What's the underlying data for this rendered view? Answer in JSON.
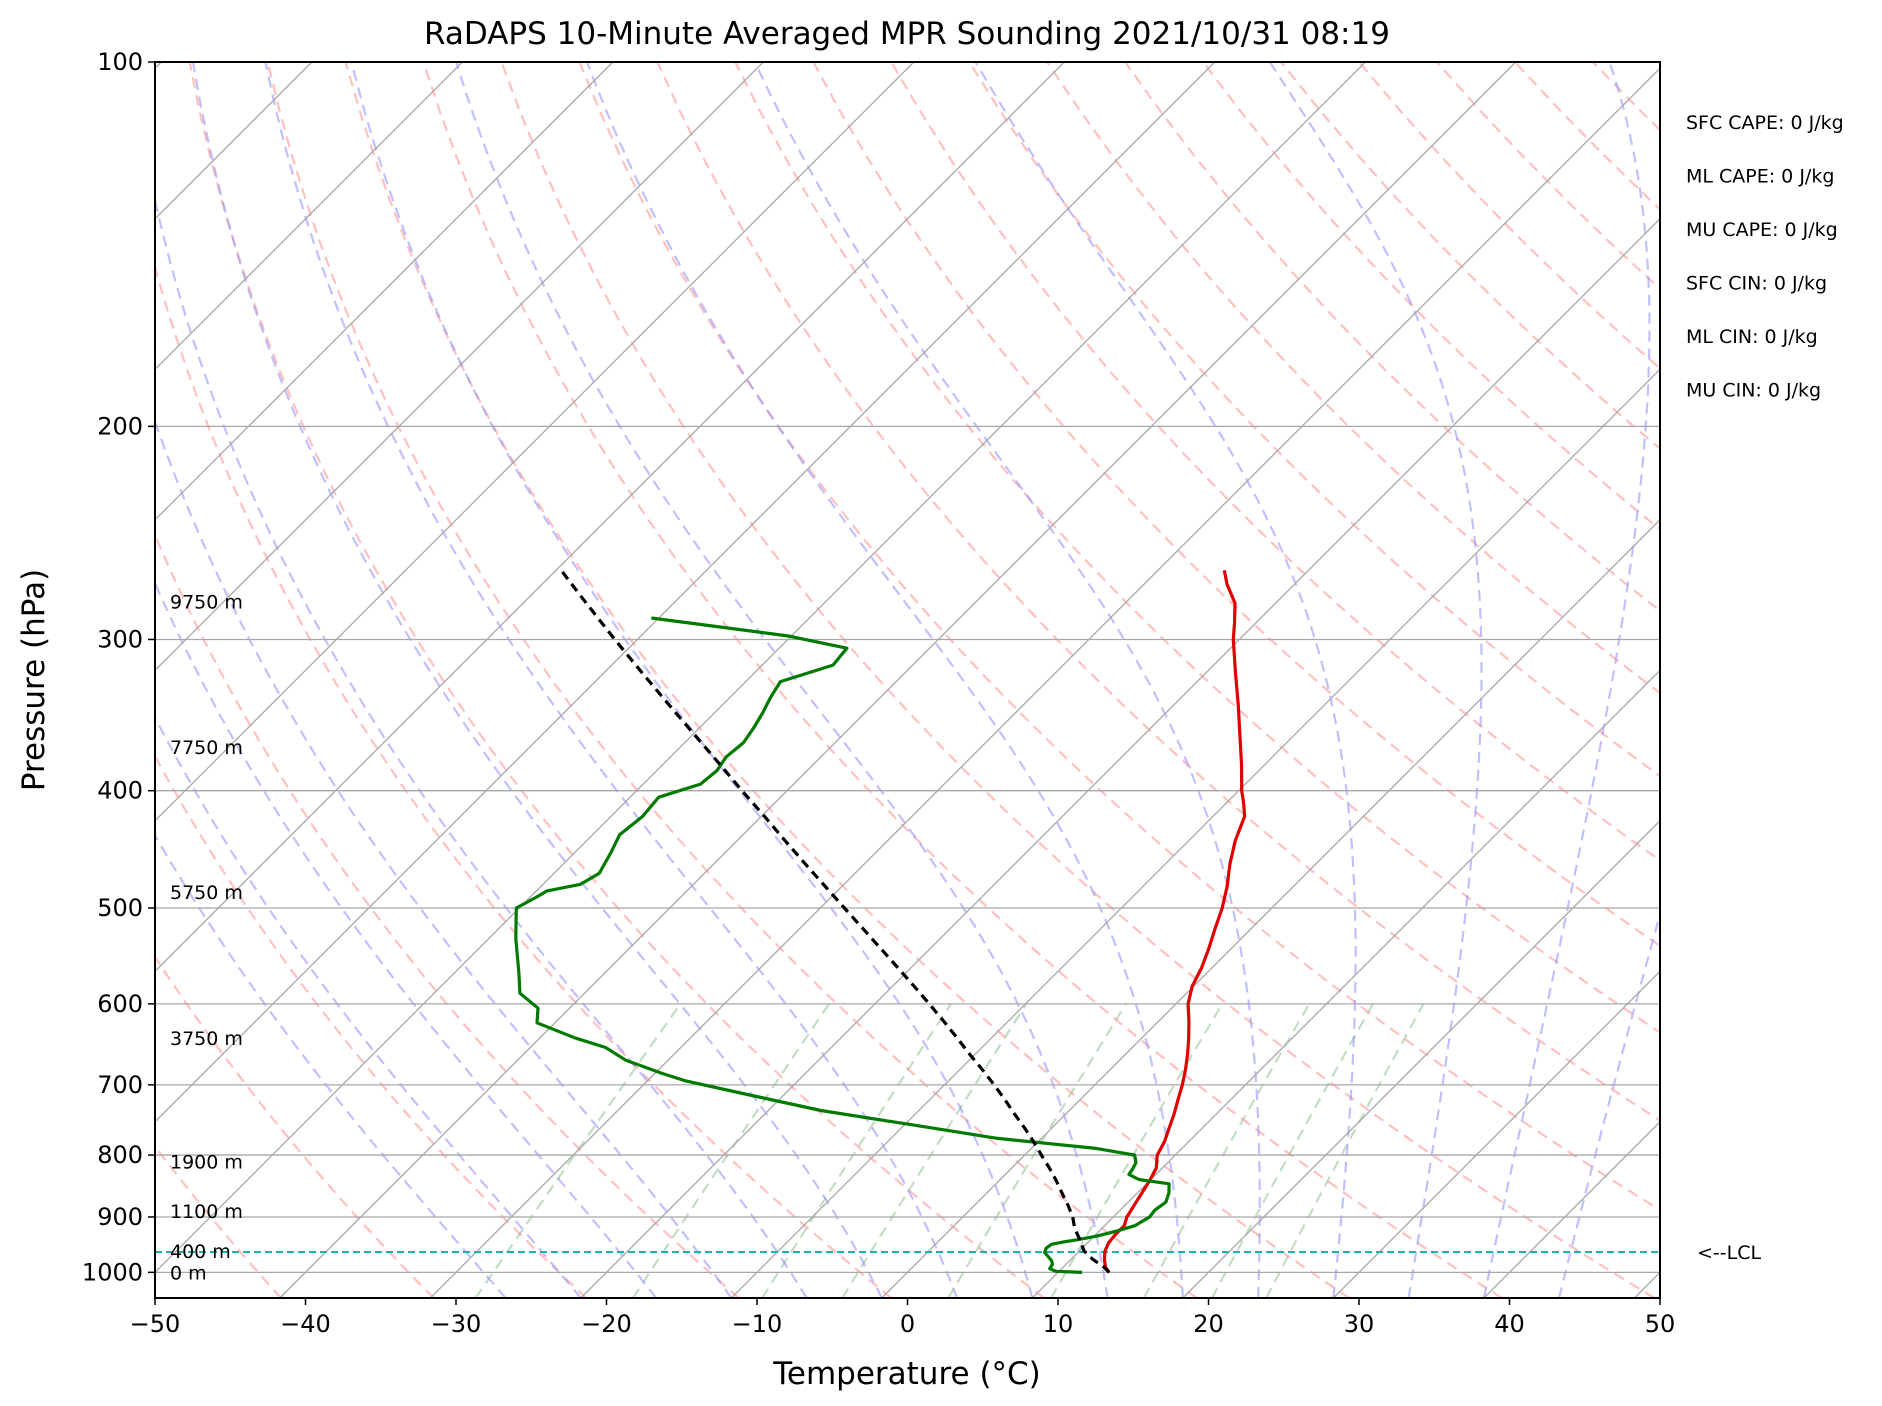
{
  "chart_data": {
    "type": "line",
    "title": "RaDAPS 10-Minute Averaged MPR Sounding 2021/10/31 08:19",
    "xlabel": "Temperature (°C)",
    "ylabel": "Pressure (hPa)",
    "xlim": [
      -50,
      50
    ],
    "ylim": [
      1050,
      100
    ],
    "y_scale": "log",
    "skew": "skew-T log-p",
    "grid": true,
    "x_ticks": [
      "−50",
      "−40",
      "−30",
      "−20",
      "−10",
      "0",
      "10",
      "20",
      "30",
      "40",
      "50"
    ],
    "x_tick_values": [
      -50,
      -40,
      -30,
      -20,
      -10,
      0,
      10,
      20,
      30,
      40,
      50
    ],
    "y_ticks": [
      "100",
      "200",
      "300",
      "400",
      "500",
      "600",
      "700",
      "800",
      "900",
      "1000"
    ],
    "y_tick_values": [
      100,
      200,
      300,
      400,
      500,
      600,
      700,
      800,
      900,
      1000
    ],
    "series": [
      {
        "role": "temperature",
        "color": "#e00000",
        "points": [
          [
            1000,
            13.4
          ],
          [
            990,
            12.8
          ],
          [
            975,
            12.2
          ],
          [
            960,
            11.7
          ],
          [
            945,
            11.4
          ],
          [
            930,
            11.3
          ],
          [
            915,
            11.3
          ],
          [
            900,
            10.9
          ],
          [
            880,
            10.6
          ],
          [
            860,
            10.3
          ],
          [
            840,
            10.0
          ],
          [
            820,
            9.6
          ],
          [
            800,
            8.8
          ],
          [
            780,
            8.4
          ],
          [
            760,
            7.8
          ],
          [
            740,
            7.2
          ],
          [
            720,
            6.5
          ],
          [
            700,
            5.8
          ],
          [
            680,
            5.0
          ],
          [
            660,
            4.1
          ],
          [
            640,
            3.1
          ],
          [
            620,
            2.0
          ],
          [
            600,
            0.8
          ],
          [
            580,
            -0.1
          ],
          [
            560,
            -0.7
          ],
          [
            540,
            -1.5
          ],
          [
            520,
            -2.4
          ],
          [
            500,
            -3.3
          ],
          [
            480,
            -4.4
          ],
          [
            460,
            -5.7
          ],
          [
            440,
            -6.9
          ],
          [
            420,
            -7.9
          ],
          [
            410,
            -8.8
          ],
          [
            400,
            -9.8
          ],
          [
            380,
            -11.6
          ],
          [
            360,
            -13.6
          ],
          [
            340,
            -15.7
          ],
          [
            320,
            -18.0
          ],
          [
            300,
            -20.4
          ],
          [
            290,
            -21.5
          ],
          [
            280,
            -22.7
          ],
          [
            270,
            -24.5
          ],
          [
            263,
            -25.6
          ]
        ]
      },
      {
        "role": "dewpoint",
        "color": "#007a00",
        "points": [
          [
            1000,
            11.6
          ],
          [
            998,
            9.8
          ],
          [
            993,
            9.2
          ],
          [
            985,
            9.1
          ],
          [
            978,
            8.8
          ],
          [
            972,
            8.4
          ],
          [
            963,
            7.8
          ],
          [
            955,
            7.6
          ],
          [
            948,
            7.7
          ],
          [
            944,
            8.3
          ],
          [
            940,
            9.1
          ],
          [
            933,
            10.2
          ],
          [
            924,
            11.2
          ],
          [
            915,
            12.0
          ],
          [
            900,
            12.4
          ],
          [
            888,
            12.3
          ],
          [
            875,
            12.5
          ],
          [
            860,
            12.1
          ],
          [
            845,
            11.5
          ],
          [
            838,
            9.2
          ],
          [
            830,
            8.2
          ],
          [
            822,
            8.1
          ],
          [
            812,
            7.9
          ],
          [
            800,
            7.3
          ],
          [
            790,
            4.3
          ],
          [
            775,
            -2.9
          ],
          [
            755,
            -9.6
          ],
          [
            735,
            -16.5
          ],
          [
            715,
            -21.9
          ],
          [
            695,
            -27.4
          ],
          [
            685,
            -29.5
          ],
          [
            668,
            -32.8
          ],
          [
            652,
            -35.0
          ],
          [
            640,
            -37.7
          ],
          [
            622,
            -41.2
          ],
          [
            605,
            -42.1
          ],
          [
            588,
            -44.3
          ],
          [
            566,
            -45.7
          ],
          [
            530,
            -48.2
          ],
          [
            500,
            -50.2
          ],
          [
            490,
            -49.6
          ],
          [
            484,
            -49.3
          ],
          [
            478,
            -47.5
          ],
          [
            468,
            -47.0
          ],
          [
            450,
            -47.6
          ],
          [
            435,
            -48.2
          ],
          [
            420,
            -47.9
          ],
          [
            405,
            -48.1
          ],
          [
            395,
            -46.2
          ],
          [
            385,
            -46.0
          ],
          [
            375,
            -46.3
          ],
          [
            365,
            -46.1
          ],
          [
            355,
            -46.4
          ],
          [
            345,
            -46.8
          ],
          [
            335,
            -47.3
          ],
          [
            325,
            -47.7
          ],
          [
            315,
            -45.3
          ],
          [
            305,
            -45.5
          ],
          [
            298,
            -50.2
          ],
          [
            288,
            -60.5
          ]
        ]
      },
      {
        "role": "parcel-profile",
        "color": "#000000",
        "dashed": true,
        "points": [
          [
            1000,
            13.4
          ],
          [
            990,
            12.7
          ],
          [
            975,
            11.4
          ],
          [
            960,
            10.3
          ],
          [
            940,
            9.3
          ],
          [
            920,
            8.2
          ],
          [
            900,
            7.3
          ],
          [
            880,
            6.2
          ],
          [
            860,
            5.0
          ],
          [
            840,
            3.8
          ],
          [
            820,
            2.5
          ],
          [
            800,
            1.1
          ],
          [
            780,
            -0.3
          ],
          [
            760,
            -1.8
          ],
          [
            740,
            -3.4
          ],
          [
            720,
            -5.0
          ],
          [
            700,
            -6.7
          ],
          [
            680,
            -8.5
          ],
          [
            660,
            -10.4
          ],
          [
            640,
            -12.3
          ],
          [
            620,
            -14.3
          ],
          [
            600,
            -16.4
          ],
          [
            580,
            -18.6
          ],
          [
            560,
            -20.9
          ],
          [
            540,
            -23.3
          ],
          [
            520,
            -25.8
          ],
          [
            500,
            -28.4
          ],
          [
            480,
            -31.1
          ],
          [
            460,
            -33.9
          ],
          [
            440,
            -36.8
          ],
          [
            420,
            -39.8
          ],
          [
            400,
            -43.0
          ],
          [
            380,
            -46.3
          ],
          [
            360,
            -49.8
          ],
          [
            340,
            -53.5
          ],
          [
            320,
            -57.4
          ],
          [
            300,
            -61.5
          ],
          [
            280,
            -65.8
          ],
          [
            262,
            -69.9
          ]
        ]
      }
    ],
    "annotations": {
      "height_labels": [
        {
          "text": "0 m",
          "p": 1000
        },
        {
          "text": "400 m",
          "p": 960
        },
        {
          "text": "1100 m",
          "p": 890
        },
        {
          "text": "1900 m",
          "p": 810
        },
        {
          "text": "3750 m",
          "p": 640
        },
        {
          "text": "5750 m",
          "p": 485
        },
        {
          "text": "7750 m",
          "p": 368
        },
        {
          "text": "9750 m",
          "p": 279
        }
      ],
      "lcl": {
        "text": "<--LCL",
        "p": 962,
        "color": "#20b2aa"
      },
      "indices": [
        "SFC CAPE: 0 J/kg",
        "ML CAPE: 0 J/kg",
        "MU CAPE: 0 J/kg",
        "SFC CIN: 0 J/kg",
        "ML CIN: 0 J/kg",
        "MU CIN: 0 J/kg"
      ]
    },
    "colors": {
      "isotherm": "#a8a8a8",
      "dry_adiabat": "#ff8c8c",
      "moist_adiabat": "#8c8cff",
      "mixing_ratio": "#78b478"
    }
  }
}
